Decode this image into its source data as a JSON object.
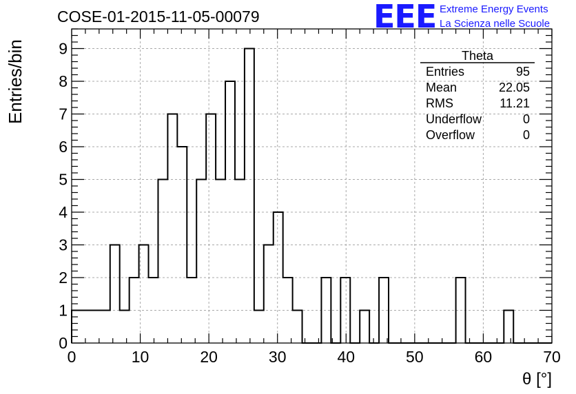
{
  "page": {
    "title": "COSE-01-2015-11-05-00079",
    "logo": {
      "mark": "EEE",
      "line1": "Extreme Energy Events",
      "line2": "La Scienza nelle Scuole"
    }
  },
  "stats_box": {
    "title": "Theta",
    "rows": [
      {
        "label": "Entries",
        "value": "95"
      },
      {
        "label": "Mean",
        "value": "22.05"
      },
      {
        "label": "RMS",
        "value": "11.21"
      },
      {
        "label": "Underflow",
        "value": "0"
      },
      {
        "label": "Overflow",
        "value": "0"
      }
    ]
  },
  "chart_data": {
    "type": "bar",
    "style": "step-histogram",
    "title": "COSE-01-2015-11-05-00079",
    "xlabel": "θ [°]",
    "ylabel": "Entries/bin",
    "xlim": [
      0,
      70
    ],
    "ylim": [
      0,
      9.6
    ],
    "bin_width": 1.4,
    "bin_edges_start": 0,
    "xticks": [
      0,
      10,
      20,
      30,
      40,
      50,
      60,
      70
    ],
    "yticks": [
      0,
      1,
      2,
      3,
      4,
      5,
      6,
      7,
      8,
      9
    ],
    "grid": true,
    "values": [
      1,
      1,
      1,
      1,
      3,
      1,
      2,
      3,
      2,
      5,
      7,
      6,
      2,
      5,
      7,
      5,
      8,
      5,
      9,
      1,
      3,
      4,
      2,
      1,
      0,
      0,
      2,
      0,
      2,
      0,
      1,
      0,
      2,
      0,
      0,
      0,
      0,
      0,
      0,
      0,
      2,
      0,
      0,
      0,
      0,
      1,
      0,
      0,
      0,
      0
    ]
  }
}
